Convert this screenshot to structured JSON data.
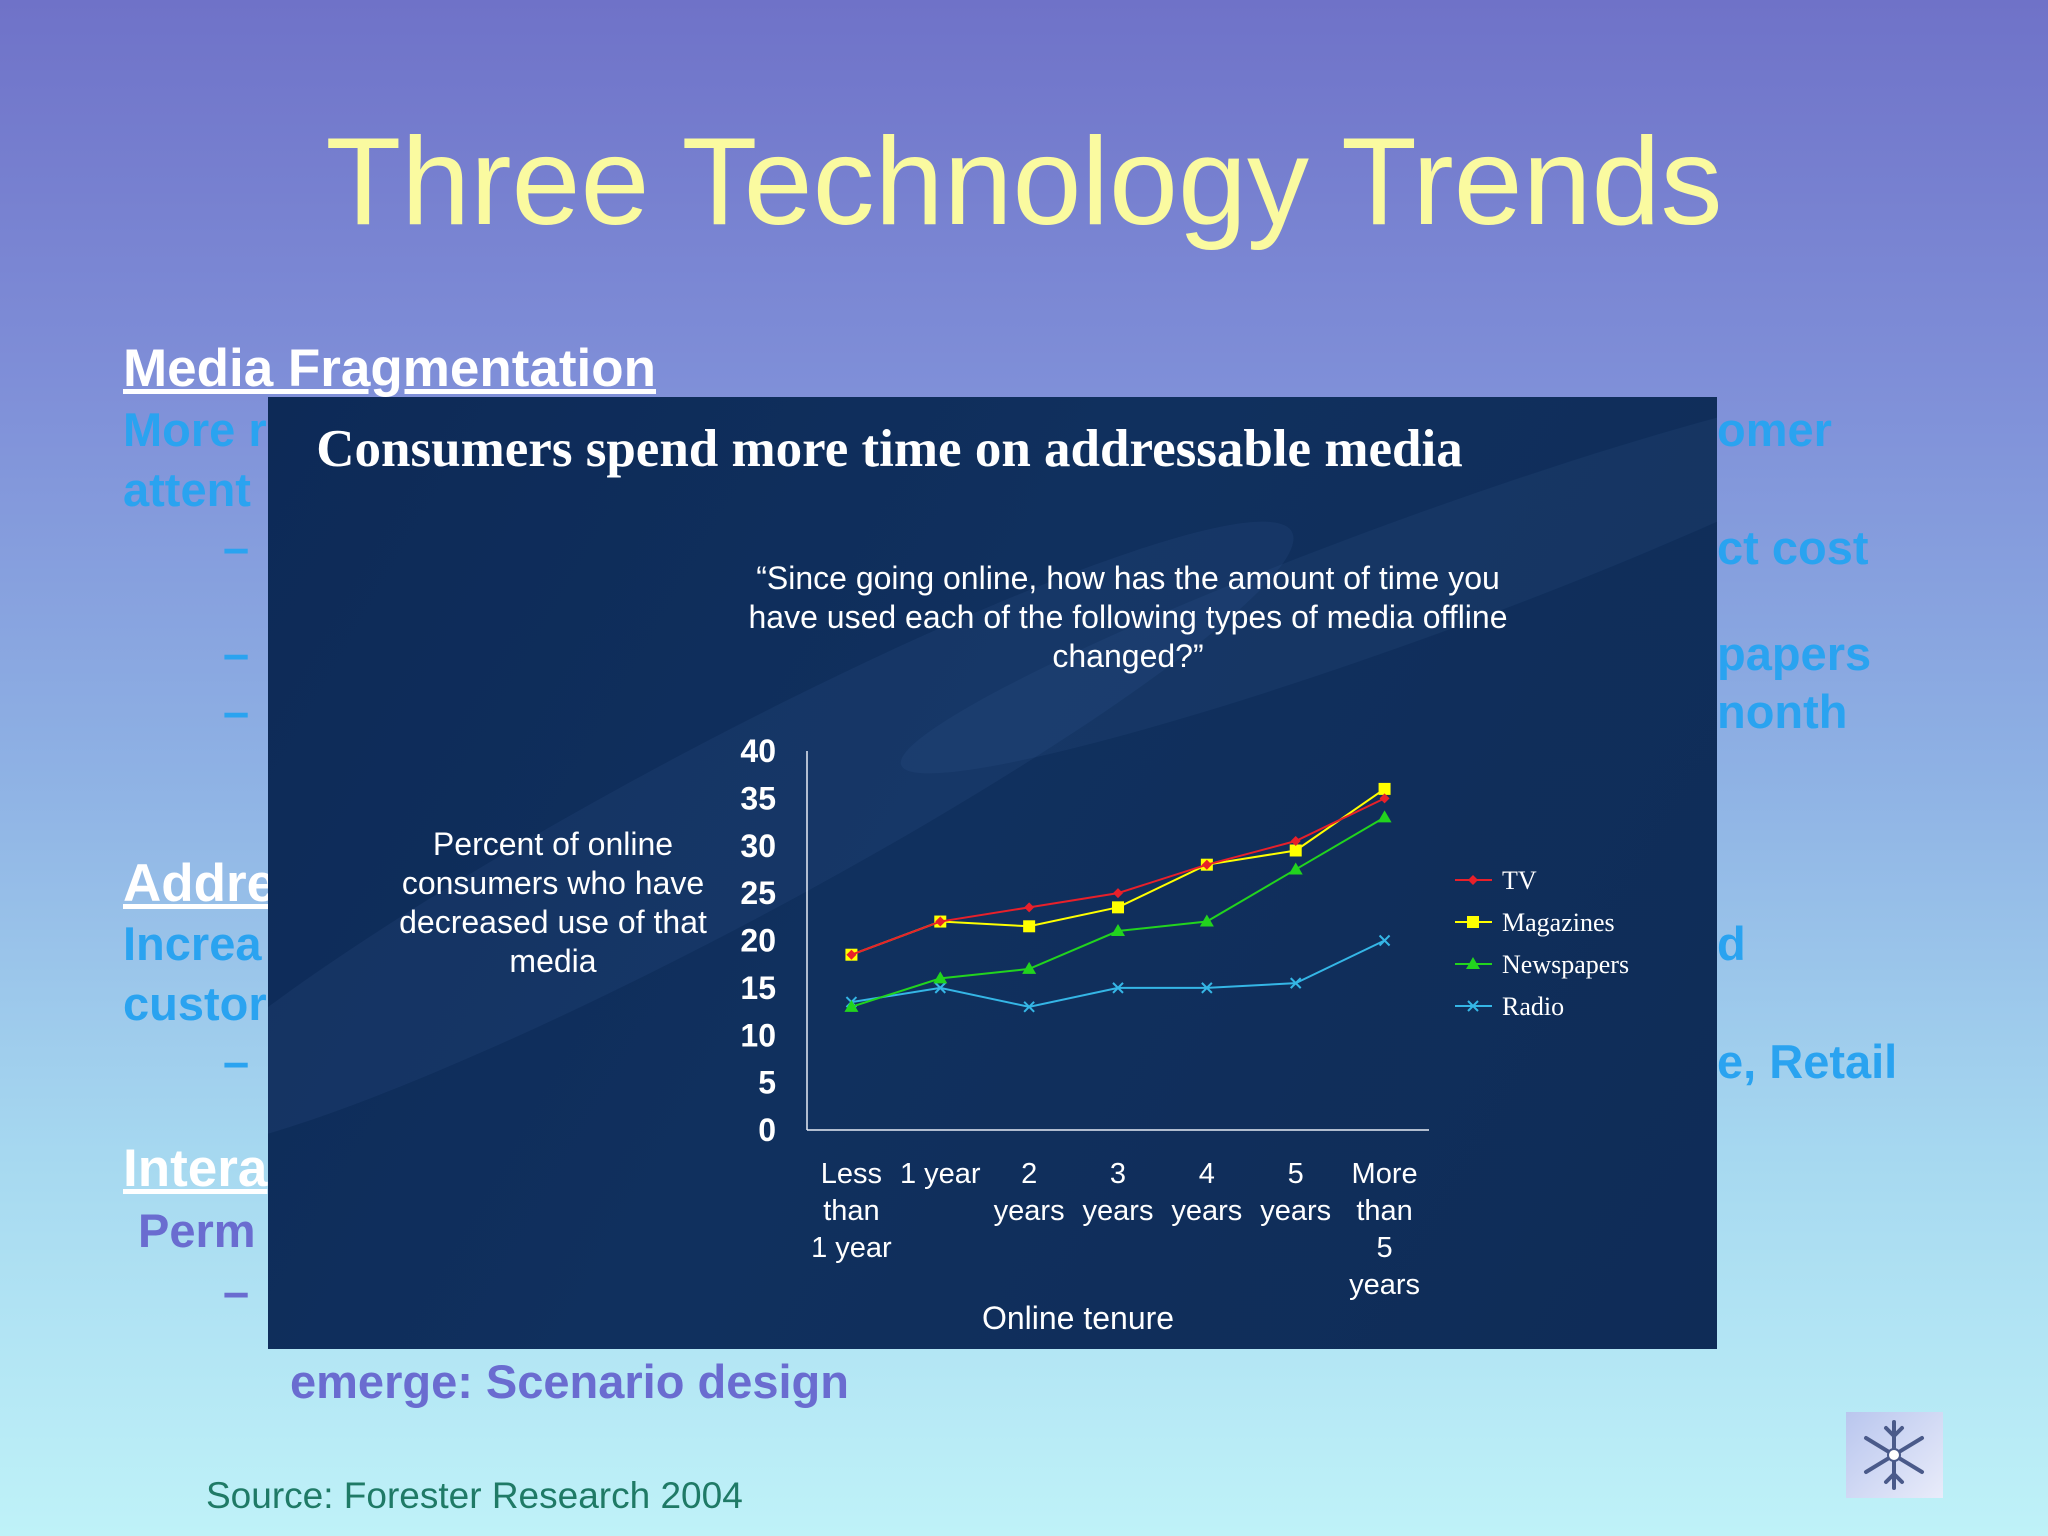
{
  "slide": {
    "title": "Three Technology Trends",
    "source": "Source: Forester Research 2004",
    "background_texts": {
      "h1": "Media Fragmentation",
      "l1a": "More r",
      "l1b": "omer",
      "l2": "attent",
      "d1b": "ct cost",
      "d2b": "papers",
      "d3b": "nonth",
      "h2": "Addre",
      "l3a": "Increa",
      "l3b": "d",
      "l4": "custor",
      "d4b": "e, Retail",
      "h3": "Intera",
      "l5": "Perm",
      "l6": "emerge: Scenario design",
      "dash": "–"
    }
  },
  "colors": {
    "tv": "#e8202a",
    "magazines": "#ffff00",
    "newspapers": "#22d41e",
    "radio": "#35b6e6"
  },
  "chart_data": {
    "type": "line",
    "title": "Consumers spend more time on addressable media",
    "subtitle": "“Since going online, how has the amount of time you have used each of the following types of media offline changed?”",
    "ylabel": "Percent of online consumers who have decreased use of that media",
    "xlabel": "Online tenure",
    "categories": [
      [
        "Less",
        "than",
        "1 year"
      ],
      [
        "1 year"
      ],
      [
        "2",
        "years"
      ],
      [
        "3",
        "years"
      ],
      [
        "4",
        "years"
      ],
      [
        "5",
        "years"
      ],
      [
        "More",
        "than",
        "5",
        "years"
      ]
    ],
    "ylim": [
      0,
      40
    ],
    "yticks": [
      "0",
      "5",
      "10",
      "15",
      "20",
      "25",
      "30",
      "35",
      "40"
    ],
    "grid": false,
    "legend_position": "right",
    "series": [
      {
        "name": "TV",
        "values": [
          18.5,
          22,
          23.5,
          25,
          28,
          30.5,
          35
        ],
        "color_key": "tv",
        "marker": "diamond"
      },
      {
        "name": "Magazines",
        "values": [
          18.5,
          22,
          21.5,
          23.5,
          28,
          29.5,
          36
        ],
        "color_key": "magazines",
        "marker": "square"
      },
      {
        "name": "Newspapers",
        "values": [
          13,
          16,
          17,
          21,
          22,
          27.5,
          33
        ],
        "color_key": "newspapers",
        "marker": "triangle"
      },
      {
        "name": "Radio",
        "values": [
          13.5,
          15,
          13,
          15,
          15,
          15.5,
          20
        ],
        "color_key": "radio",
        "marker": "x"
      }
    ]
  }
}
